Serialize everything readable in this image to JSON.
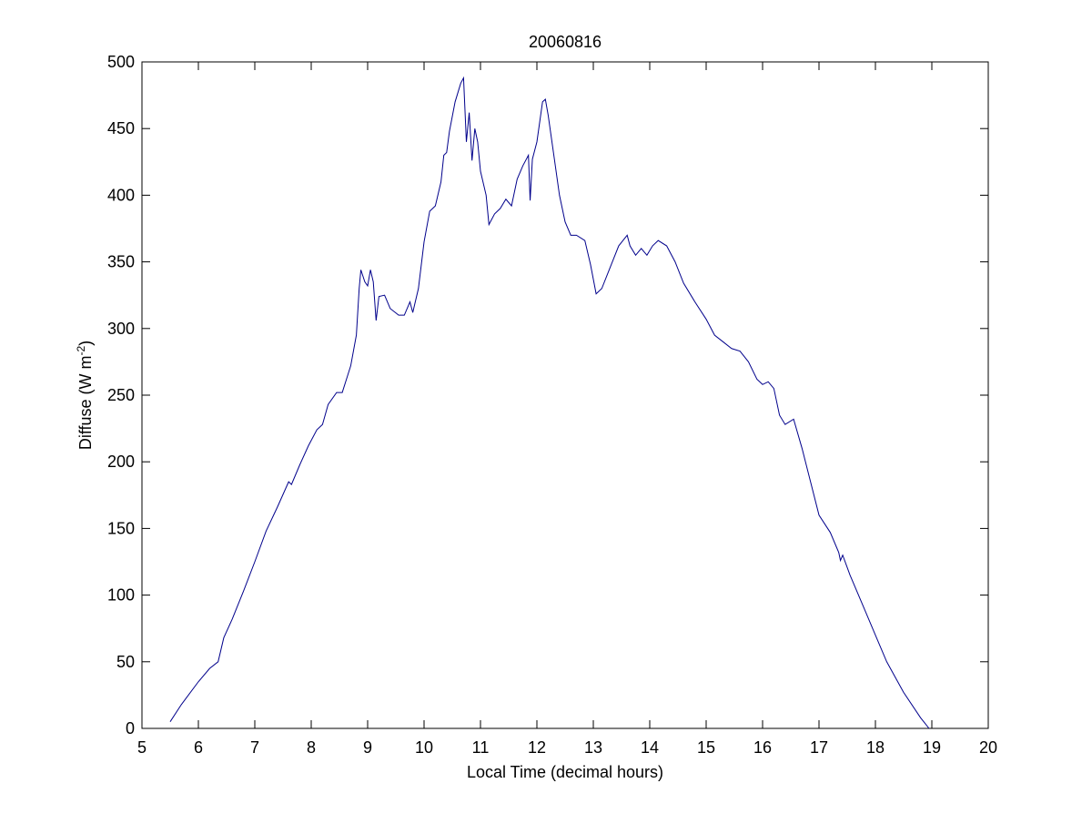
{
  "chart_data": {
    "type": "line",
    "title": "20060816",
    "x_label": "Local Time (decimal hours)",
    "y_label": "Diffuse (W m",
    "y_label_superscript": "-2",
    "y_label_close": ")",
    "xlim": [
      5,
      20
    ],
    "xticks": [
      5,
      6,
      7,
      8,
      9,
      10,
      11,
      12,
      13,
      14,
      15,
      16,
      17,
      18,
      19,
      20
    ],
    "ylim": [
      0,
      500
    ],
    "yticks": [
      0,
      50,
      100,
      150,
      200,
      250,
      300,
      350,
      400,
      450,
      500
    ],
    "grid": false,
    "series": [
      {
        "color": "#00008b",
        "x": [
          5.5,
          5.7,
          6.0,
          6.2,
          6.35,
          6.45,
          6.6,
          6.8,
          7.0,
          7.2,
          7.4,
          7.6,
          7.65,
          7.8,
          7.95,
          8.1,
          8.2,
          8.3,
          8.45,
          8.55,
          8.7,
          8.8,
          8.85,
          8.88,
          8.95,
          9.0,
          9.05,
          9.1,
          9.15,
          9.2,
          9.3,
          9.4,
          9.55,
          9.65,
          9.75,
          9.8,
          9.9,
          10.0,
          10.1,
          10.2,
          10.3,
          10.35,
          10.4,
          10.45,
          10.55,
          10.65,
          10.7,
          10.75,
          10.8,
          10.85,
          10.9,
          10.95,
          11.0,
          11.1,
          11.15,
          11.25,
          11.35,
          11.45,
          11.55,
          11.65,
          11.75,
          11.85,
          11.88,
          11.92,
          12.0,
          12.1,
          12.15,
          12.2,
          12.3,
          12.4,
          12.5,
          12.6,
          12.7,
          12.85,
          12.95,
          13.05,
          13.15,
          13.3,
          13.45,
          13.6,
          13.65,
          13.75,
          13.85,
          13.95,
          14.05,
          14.15,
          14.3,
          14.45,
          14.6,
          14.8,
          15.0,
          15.15,
          15.3,
          15.45,
          15.6,
          15.75,
          15.9,
          16.0,
          16.1,
          16.2,
          16.3,
          16.4,
          16.55,
          16.7,
          16.85,
          17.0,
          17.2,
          17.35,
          17.38,
          17.42,
          17.55,
          17.8,
          18.0,
          18.2,
          18.5,
          18.8,
          18.95
        ],
        "values": [
          5,
          18,
          35,
          45,
          50,
          68,
          82,
          103,
          125,
          148,
          166,
          185,
          183,
          198,
          212,
          224,
          228,
          243,
          252,
          252,
          272,
          295,
          330,
          344,
          335,
          332,
          344,
          335,
          306,
          324,
          325,
          315,
          310,
          310,
          320,
          312,
          330,
          365,
          388,
          392,
          410,
          430,
          432,
          448,
          470,
          484,
          488,
          440,
          462,
          426,
          450,
          440,
          418,
          400,
          378,
          386,
          390,
          397,
          392,
          412,
          422,
          430,
          396,
          427,
          440,
          470,
          472,
          460,
          430,
          400,
          380,
          370,
          370,
          366,
          348,
          326,
          330,
          346,
          362,
          370,
          362,
          355,
          360,
          355,
          362,
          366,
          362,
          350,
          334,
          320,
          307,
          295,
          290,
          285,
          283,
          275,
          262,
          258,
          260,
          255,
          235,
          228,
          232,
          210,
          185,
          160,
          147,
          132,
          126,
          130,
          115,
          90,
          70,
          50,
          27,
          8,
          0
        ]
      }
    ]
  }
}
